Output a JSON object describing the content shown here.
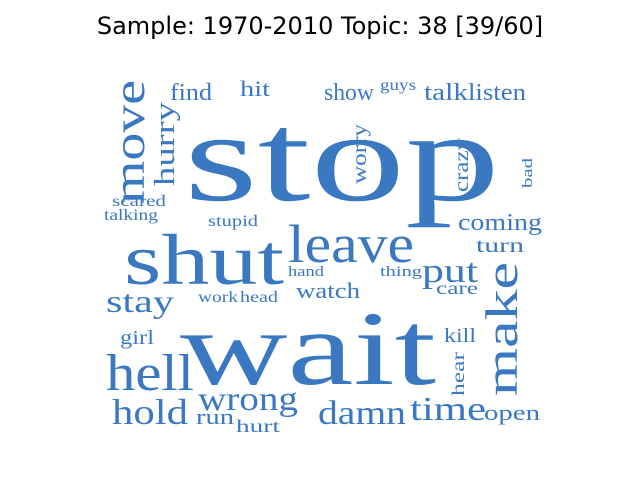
{
  "title": "Sample: 1970-2010 Topic: 38 [39/60]",
  "word_color": "#3a78c2",
  "words": [
    {
      "text": "stop"
    },
    {
      "text": "wait"
    },
    {
      "text": "shut"
    },
    {
      "text": "leave"
    },
    {
      "text": "make"
    },
    {
      "text": "move"
    },
    {
      "text": "hell"
    },
    {
      "text": "hold"
    },
    {
      "text": "damn"
    },
    {
      "text": "time"
    },
    {
      "text": "wrong"
    },
    {
      "text": "stay"
    },
    {
      "text": "put"
    },
    {
      "text": "hurry"
    },
    {
      "text": "coming"
    },
    {
      "text": "turn"
    },
    {
      "text": "watch"
    },
    {
      "text": "worry"
    },
    {
      "text": "crazy"
    },
    {
      "text": "find"
    },
    {
      "text": "hit"
    },
    {
      "text": "show"
    },
    {
      "text": "guys"
    },
    {
      "text": "talk"
    },
    {
      "text": "listen"
    },
    {
      "text": "scared"
    },
    {
      "text": "talking"
    },
    {
      "text": "stupid"
    },
    {
      "text": "hand"
    },
    {
      "text": "thing"
    },
    {
      "text": "care"
    },
    {
      "text": "work"
    },
    {
      "text": "head"
    },
    {
      "text": "girl"
    },
    {
      "text": "kill"
    },
    {
      "text": "hear"
    },
    {
      "text": "run"
    },
    {
      "text": "hurt"
    },
    {
      "text": "open"
    },
    {
      "text": "bad"
    }
  ]
}
